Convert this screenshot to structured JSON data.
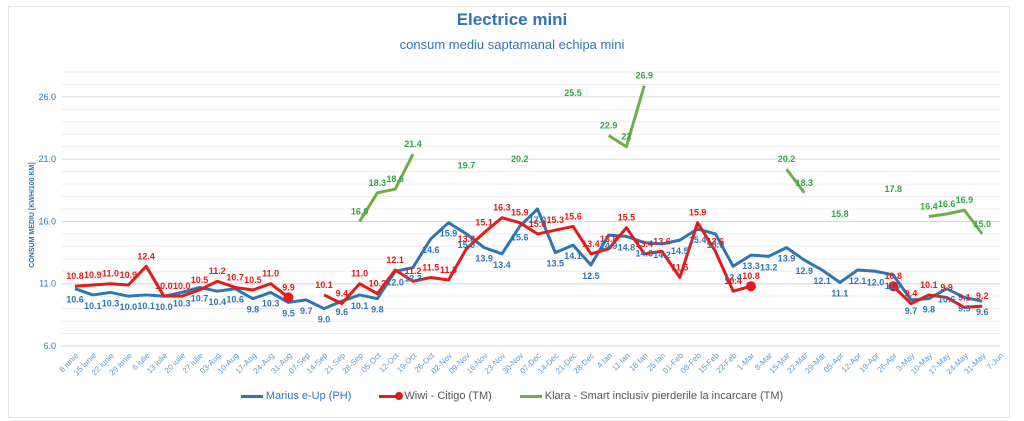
{
  "chart_data": {
    "type": "line",
    "title": "Electrice mini",
    "subtitle": "consum mediu saptamanal  echipa mini",
    "xlabel": "",
    "ylabel": "CONSUM MEDIU [KWH/100 KM]",
    "ylim": [
      6.0,
      28.0
    ],
    "yticks": [
      "6.0",
      "11.0",
      "16.0",
      "21.0",
      "26.0"
    ],
    "ytick_values": [
      6.0,
      11.0,
      16.0,
      21.0,
      26.0
    ],
    "grid": true,
    "legend_position": "bottom",
    "categories": [
      "8 iunie",
      "15 iunie",
      "22 iunie",
      "29 iunie",
      "6 iulie",
      "13 iulie",
      "20 iulie",
      "27 iulie",
      "03-Aug",
      "10-Aug",
      "17-Aug",
      "24-Aug",
      "31-Aug",
      "07-Sep",
      "14-Sep",
      "21-Sep",
      "28-Sep",
      "05-Oct",
      "12-Oct",
      "19-Oct",
      "26-Oct",
      "02-Nov",
      "09-Nov",
      "16-Nov",
      "23-Nov",
      "30-Nov",
      "07-Dec",
      "14-Dec",
      "21-Dec",
      "28-Dec",
      "4 Ian",
      "11 Ian",
      "18 Ian",
      "25 Ian",
      "01-Feb",
      "08-Feb",
      "15-Feb",
      "22-Feb",
      "1-Mar",
      "8-Mar",
      "15-Mar",
      "22-Mar",
      "29-Mar",
      "05-Apr",
      "12-Apr",
      "19-Apr",
      "26-Apr",
      "3-May",
      "10-May",
      "17-May",
      "24-May",
      "31-May",
      "7-Jun"
    ],
    "series": [
      {
        "name": "Marius e-Up (PH)",
        "color": "#2e75b6",
        "values": [
          10.6,
          10.1,
          10.3,
          10.0,
          10.1,
          10.0,
          10.3,
          10.7,
          10.4,
          10.6,
          9.8,
          10.3,
          9.5,
          9.7,
          9.0,
          9.6,
          10.1,
          9.8,
          12.0,
          12.3,
          14.6,
          15.9,
          15.0,
          13.9,
          13.4,
          15.6,
          17.0,
          13.5,
          14.1,
          12.5,
          14.9,
          14.8,
          14.3,
          14.2,
          14.5,
          15.4,
          15.0,
          12.4,
          13.3,
          13.2,
          13.9,
          12.9,
          12.1,
          11.1,
          12.1,
          12.0,
          11.7,
          9.7,
          9.8,
          10.6,
          9.9,
          9.6,
          null
        ]
      },
      {
        "name": "Wiwi - Citigo (TM)",
        "color": "#e31b1b",
        "values": [
          10.8,
          10.9,
          11.0,
          10.9,
          12.4,
          10.0,
          10.0,
          10.5,
          11.2,
          10.7,
          10.5,
          11.0,
          9.9,
          null,
          10.1,
          9.4,
          11.0,
          10.2,
          12.1,
          11.2,
          11.5,
          11.3,
          13.8,
          15.1,
          16.3,
          15.9,
          15.0,
          15.3,
          15.6,
          13.4,
          13.8,
          15.5,
          13.4,
          13.6,
          11.5,
          15.9,
          13.6,
          10.4,
          10.8,
          null,
          null,
          null,
          null,
          null,
          null,
          null,
          10.8,
          9.4,
          10.1,
          9.9,
          9.1,
          9.2,
          null
        ]
      },
      {
        "name": "Klara - Smart inclusiv pierderile la incarcare (TM)",
        "color": "#70ad47",
        "label_color": "#2ea84a",
        "values": [
          null,
          null,
          null,
          null,
          null,
          null,
          null,
          null,
          null,
          null,
          null,
          null,
          null,
          null,
          null,
          null,
          16.0,
          18.3,
          18.6,
          21.4,
          null,
          null,
          19.7,
          null,
          null,
          20.2,
          null,
          null,
          25.5,
          null,
          22.9,
          22.0,
          26.9,
          null,
          null,
          null,
          null,
          null,
          null,
          null,
          20.2,
          18.3,
          null,
          15.8,
          null,
          null,
          17.8,
          null,
          16.4,
          16.6,
          16.9,
          15.0,
          null
        ],
        "value_labels": [
          null,
          null,
          null,
          null,
          null,
          null,
          null,
          null,
          null,
          null,
          null,
          null,
          null,
          null,
          null,
          null,
          "16.0",
          "18.3",
          "18.6",
          "21.4",
          null,
          null,
          "19.7",
          null,
          null,
          "20.2",
          null,
          null,
          "25.5",
          null,
          "22.9",
          "22",
          "26.9",
          null,
          null,
          null,
          null,
          null,
          null,
          null,
          "20.2",
          "18.3",
          null,
          "15.8",
          null,
          null,
          "17.8",
          null,
          "16.4",
          "16.6",
          "16.9",
          "15.0",
          null
        ]
      }
    ]
  },
  "legend": {
    "items": [
      {
        "label": "Marius e-Up (PH)",
        "color": "#2e75b6"
      },
      {
        "label": "Wiwi - Citigo (TM)",
        "color": "#e31b1b"
      },
      {
        "label": "Klara - Smart inclusiv pierderile la incarcare (TM)",
        "color": "#70ad47"
      }
    ]
  }
}
